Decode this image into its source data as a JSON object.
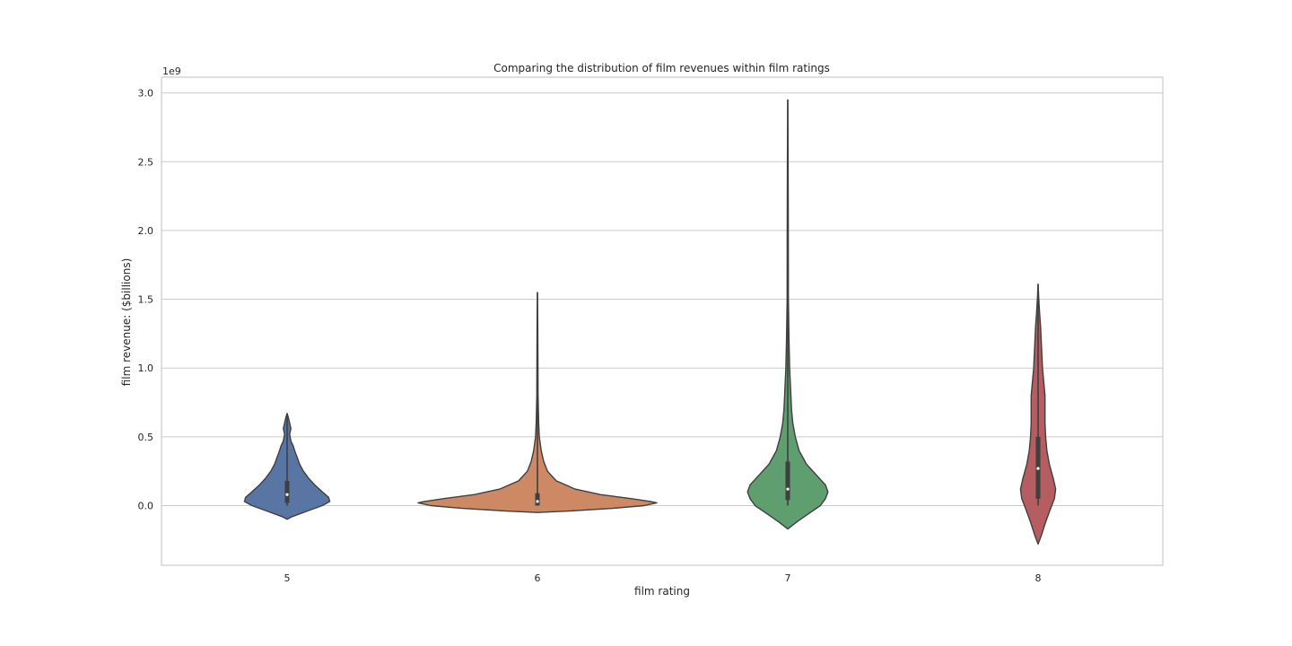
{
  "chart_data": {
    "type": "violin",
    "title": "Comparing the distribution of film revenues within film ratings",
    "xlabel": "film rating",
    "ylabel": "film revenue: ($billions)",
    "y_offset_label": "1e9",
    "ylim": [
      -0.44,
      3.12
    ],
    "y_ticks": [
      0.0,
      0.5,
      1.0,
      1.5,
      2.0,
      2.5,
      3.0
    ],
    "y_tick_labels": [
      "0.0",
      "0.5",
      "1.0",
      "1.5",
      "2.0",
      "2.5",
      "3.0"
    ],
    "grid": true,
    "categories": [
      "5",
      "6",
      "7",
      "8"
    ],
    "colors": [
      "#5875a4",
      "#cc8963",
      "#5f9e6e",
      "#b55d60"
    ],
    "series": [
      {
        "category": "5",
        "whisker": [
          0.0,
          0.67
        ],
        "box": [
          0.02,
          0.18
        ],
        "median": 0.08,
        "outline": [
          [
            -0.1,
            0.0
          ],
          [
            -0.08,
            0.04
          ],
          [
            -0.04,
            0.16
          ],
          [
            0.0,
            0.28
          ],
          [
            0.03,
            0.34
          ],
          [
            0.06,
            0.33
          ],
          [
            0.1,
            0.28
          ],
          [
            0.15,
            0.22
          ],
          [
            0.2,
            0.17
          ],
          [
            0.25,
            0.13
          ],
          [
            0.3,
            0.1
          ],
          [
            0.35,
            0.08
          ],
          [
            0.4,
            0.06
          ],
          [
            0.43,
            0.05
          ],
          [
            0.47,
            0.03
          ],
          [
            0.52,
            0.02
          ],
          [
            0.56,
            0.03
          ],
          [
            0.6,
            0.02
          ],
          [
            0.64,
            0.01
          ],
          [
            0.67,
            0.0
          ]
        ]
      },
      {
        "category": "6",
        "whisker": [
          0.0,
          1.55
        ],
        "box": [
          0.0,
          0.09
        ],
        "median": 0.03,
        "outline": [
          [
            -0.05,
            0.0
          ],
          [
            -0.04,
            0.25
          ],
          [
            -0.02,
            0.6
          ],
          [
            0.0,
            0.85
          ],
          [
            0.02,
            0.95
          ],
          [
            0.03,
            0.9
          ],
          [
            0.05,
            0.75
          ],
          [
            0.08,
            0.5
          ],
          [
            0.12,
            0.3
          ],
          [
            0.18,
            0.15
          ],
          [
            0.25,
            0.08
          ],
          [
            0.32,
            0.05
          ],
          [
            0.4,
            0.03
          ],
          [
            0.5,
            0.015
          ],
          [
            0.6,
            0.01
          ],
          [
            0.8,
            0.005
          ],
          [
            1.0,
            0.004
          ],
          [
            1.3,
            0.003
          ],
          [
            1.55,
            0.0
          ]
        ]
      },
      {
        "category": "7",
        "whisker": [
          0.0,
          2.95
        ],
        "box": [
          0.04,
          0.32
        ],
        "median": 0.12,
        "outline": [
          [
            -0.17,
            0.0
          ],
          [
            -0.12,
            0.07
          ],
          [
            -0.05,
            0.18
          ],
          [
            0.0,
            0.26
          ],
          [
            0.05,
            0.3
          ],
          [
            0.1,
            0.32
          ],
          [
            0.15,
            0.3
          ],
          [
            0.2,
            0.25
          ],
          [
            0.3,
            0.15
          ],
          [
            0.4,
            0.09
          ],
          [
            0.5,
            0.06
          ],
          [
            0.6,
            0.04
          ],
          [
            0.7,
            0.03
          ],
          [
            0.8,
            0.025
          ],
          [
            0.9,
            0.02
          ],
          [
            1.0,
            0.015
          ],
          [
            1.2,
            0.01
          ],
          [
            1.5,
            0.005
          ],
          [
            2.0,
            0.004
          ],
          [
            2.5,
            0.003
          ],
          [
            2.95,
            0.0
          ]
        ]
      },
      {
        "category": "8",
        "whisker": [
          0.0,
          1.61
        ],
        "box": [
          0.05,
          0.5
        ],
        "median": 0.27,
        "outline": [
          [
            -0.28,
            0.0
          ],
          [
            -0.22,
            0.025
          ],
          [
            -0.12,
            0.06
          ],
          [
            -0.02,
            0.1
          ],
          [
            0.05,
            0.13
          ],
          [
            0.12,
            0.14
          ],
          [
            0.2,
            0.12
          ],
          [
            0.3,
            0.09
          ],
          [
            0.4,
            0.07
          ],
          [
            0.5,
            0.06
          ],
          [
            0.6,
            0.055
          ],
          [
            0.7,
            0.055
          ],
          [
            0.8,
            0.055
          ],
          [
            0.9,
            0.045
          ],
          [
            1.0,
            0.035
          ],
          [
            1.1,
            0.03
          ],
          [
            1.2,
            0.025
          ],
          [
            1.3,
            0.02
          ],
          [
            1.4,
            0.012
          ],
          [
            1.5,
            0.006
          ],
          [
            1.61,
            0.0
          ]
        ]
      }
    ]
  }
}
